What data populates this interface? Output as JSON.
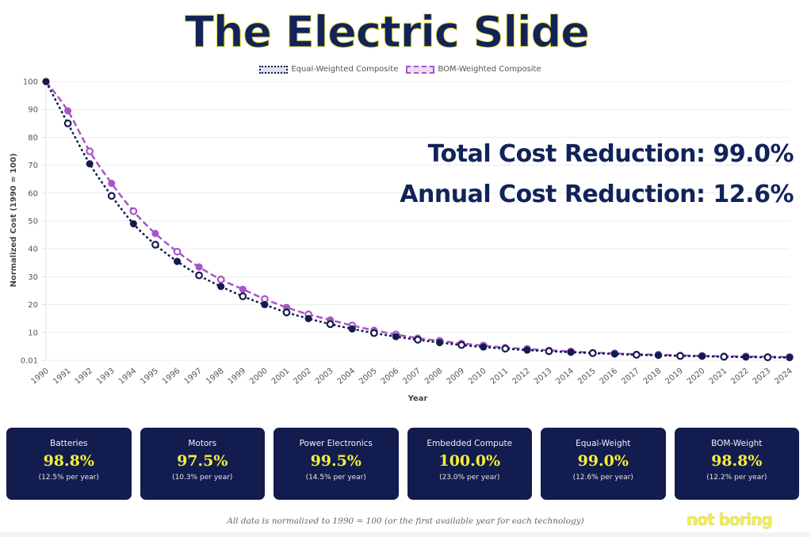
{
  "title": "The Electric Slide",
  "legend": {
    "equal": "Equal-Weighted Composite",
    "bom": "BOM-Weighted Composite"
  },
  "stats": {
    "total": "Total Cost Reduction: 99.0%",
    "annual": "Annual Cost Reduction: 12.6%"
  },
  "cards": [
    {
      "label": "Batteries",
      "value": "98.8%",
      "sub": "(12.5% per year)"
    },
    {
      "label": "Motors",
      "value": "97.5%",
      "sub": "(10.3% per year)"
    },
    {
      "label": "Power Electronics",
      "value": "99.5%",
      "sub": "(14.5% per year)"
    },
    {
      "label": "Embedded Compute",
      "value": "100.0%",
      "sub": "(23.0% per year)"
    },
    {
      "label": "Equal-Weight",
      "value": "99.0%",
      "sub": "(12.6% per year)"
    },
    {
      "label": "BOM-Weight",
      "value": "98.8%",
      "sub": "(12.2% per year)"
    }
  ],
  "footnote": "All data is normalized to 1990 = 100 (or the first available year for each technology)",
  "brand": "not boring",
  "colors": {
    "navy": "#131c4e",
    "purple": "#a855c8",
    "yellow": "#f3f03a"
  },
  "chart_data": {
    "type": "line",
    "title": "The Electric Slide",
    "xlabel": "Year",
    "ylabel": "Normalized Cost (1990 = 100)",
    "ylim": [
      0,
      100
    ],
    "yticks": [
      "0.01",
      "10",
      "20",
      "30",
      "40",
      "50",
      "60",
      "70",
      "80",
      "90",
      "100"
    ],
    "grid": true,
    "legend_position": "top-center",
    "x": [
      "1990",
      "1991",
      "1992",
      "1993",
      "1994",
      "1995",
      "1996",
      "1997",
      "1998",
      "1999",
      "2000",
      "2001",
      "2002",
      "2003",
      "2004",
      "2005",
      "2006",
      "2007",
      "2008",
      "2009",
      "2010",
      "2011",
      "2012",
      "2013",
      "2014",
      "2015",
      "2016",
      "2017",
      "2018",
      "2019",
      "2020",
      "2021",
      "2022",
      "2023",
      "2024"
    ],
    "series": [
      {
        "name": "Equal-Weighted Composite",
        "style": "dotted",
        "color": "#131c4e",
        "values": [
          100,
          85,
          70.5,
          59,
          49,
          41.5,
          35.5,
          30.5,
          26.5,
          23,
          20,
          17.2,
          15,
          13,
          11.3,
          9.8,
          8.5,
          7.4,
          6.4,
          5.5,
          4.8,
          4.2,
          3.7,
          3.3,
          2.9,
          2.6,
          2.3,
          2.0,
          1.8,
          1.6,
          1.5,
          1.3,
          1.2,
          1.1,
          1.0
        ]
      },
      {
        "name": "BOM-Weighted Composite",
        "style": "dashed",
        "color": "#a855c8",
        "values": [
          100,
          89.5,
          75,
          63.5,
          53.5,
          45.5,
          39,
          33.5,
          29,
          25.5,
          22,
          19,
          16.5,
          14.5,
          12.5,
          10.8,
          9.3,
          8.0,
          7.0,
          6.1,
          5.3,
          4.6,
          4.1,
          3.6,
          3.2,
          2.8,
          2.5,
          2.2,
          2.0,
          1.8,
          1.6,
          1.5,
          1.4,
          1.3,
          1.2
        ]
      }
    ]
  }
}
